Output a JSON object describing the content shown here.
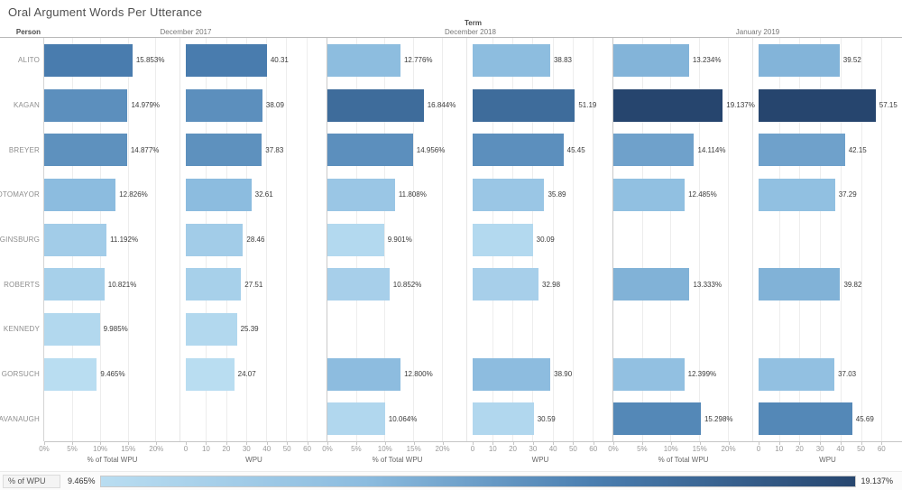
{
  "legend": {
    "title": "% of WPU",
    "min_label": "9.465%",
    "max_label": "19.137%"
  },
  "chart_data": {
    "type": "bar",
    "orientation": "horizontal",
    "title": "Oral Argument Words Per Utterance",
    "row_field": "Person",
    "col_field": "Term",
    "categories": [
      "ALITO",
      "KAGAN",
      "BREYER",
      "SOTOMAYOR",
      "GINSBURG",
      "ROBERTS",
      "KENNEDY",
      "GORSUCH",
      "KAVANAUGH"
    ],
    "terms": [
      "December 2017",
      "December 2018",
      "January 2019"
    ],
    "color_scale": {
      "measure": "% of WPU",
      "domain": [
        9.465,
        19.137
      ],
      "stops": [
        [
          0,
          "#b9ddf1"
        ],
        [
          0.35,
          "#8cbcdf"
        ],
        [
          0.65,
          "#4a7eb0"
        ],
        [
          1,
          "#26456e"
        ]
      ]
    },
    "panels": [
      {
        "term": "December 2017",
        "measure": "% of Total WPU",
        "axis": {
          "ticks": [
            0,
            5,
            10,
            15,
            20
          ],
          "tick_labels": [
            "0%",
            "5%",
            "10%",
            "15%",
            "20%"
          ],
          "max": 24.3,
          "title": "% of Total WPU"
        },
        "values": [
          15.853,
          14.979,
          14.877,
          12.826,
          11.192,
          10.821,
          9.985,
          9.465,
          null
        ],
        "labels": [
          "15.853%",
          "14.979%",
          "14.877%",
          "12.826%",
          "11.192%",
          "10.821%",
          "9.985%",
          "9.465%",
          null
        ],
        "color_values": [
          15.853,
          14.979,
          14.877,
          12.826,
          11.192,
          10.821,
          9.985,
          9.465,
          null
        ]
      },
      {
        "term": "December 2017",
        "measure": "WPU",
        "axis": {
          "ticks": [
            0,
            10,
            20,
            30,
            40,
            50,
            60
          ],
          "tick_labels": [
            "0",
            "10",
            "20",
            "30",
            "40",
            "50",
            "60"
          ],
          "max": 70,
          "title": "WPU"
        },
        "values": [
          40.31,
          38.09,
          37.83,
          32.61,
          28.46,
          27.51,
          25.39,
          24.07,
          null
        ],
        "labels": [
          "40.31",
          "38.09",
          "37.83",
          "32.61",
          "28.46",
          "27.51",
          "25.39",
          "24.07",
          null
        ],
        "color_values": [
          15.853,
          14.979,
          14.877,
          12.826,
          11.192,
          10.821,
          9.985,
          9.465,
          null
        ]
      },
      {
        "term": "December 2018",
        "measure": "% of Total WPU",
        "axis": {
          "ticks": [
            0,
            5,
            10,
            15,
            20
          ],
          "tick_labels": [
            "0%",
            "5%",
            "10%",
            "15%",
            "20%"
          ],
          "max": 24.3,
          "title": "% of Total WPU"
        },
        "values": [
          12.776,
          16.844,
          14.956,
          11.808,
          9.901,
          10.852,
          null,
          12.8,
          10.064
        ],
        "labels": [
          "12.776%",
          "16.844%",
          "14.956%",
          "11.808%",
          "9.901%",
          "10.852%",
          null,
          "12.800%",
          "10.064%"
        ],
        "color_values": [
          12.776,
          16.844,
          14.956,
          11.808,
          9.901,
          10.852,
          null,
          12.8,
          10.064
        ]
      },
      {
        "term": "December 2018",
        "measure": "WPU",
        "axis": {
          "ticks": [
            0,
            10,
            20,
            30,
            40,
            50,
            60
          ],
          "tick_labels": [
            "0",
            "10",
            "20",
            "30",
            "40",
            "50",
            "60"
          ],
          "max": 70,
          "title": "WPU"
        },
        "values": [
          38.83,
          51.19,
          45.45,
          35.89,
          30.09,
          32.98,
          null,
          38.9,
          30.59
        ],
        "labels": [
          "38.83",
          "51.19",
          "45.45",
          "35.89",
          "30.09",
          "32.98",
          null,
          "38.90",
          "30.59"
        ],
        "color_values": [
          12.776,
          16.844,
          14.956,
          11.808,
          9.901,
          10.852,
          null,
          12.8,
          10.064
        ]
      },
      {
        "term": "January 2019",
        "measure": "% of Total WPU",
        "axis": {
          "ticks": [
            0,
            5,
            10,
            15,
            20
          ],
          "tick_labels": [
            "0%",
            "5%",
            "10%",
            "15%",
            "20%"
          ],
          "max": 24.3,
          "title": "% of Total WPU"
        },
        "values": [
          13.234,
          19.137,
          14.114,
          12.485,
          null,
          13.333,
          null,
          12.399,
          15.298
        ],
        "labels": [
          "13.234%",
          "19.137%",
          "14.114%",
          "12.485%",
          null,
          "13.333%",
          null,
          "12.399%",
          "15.298%"
        ],
        "color_values": [
          13.234,
          19.137,
          14.114,
          12.485,
          null,
          13.333,
          null,
          12.399,
          15.298
        ]
      },
      {
        "term": "January 2019",
        "measure": "WPU",
        "axis": {
          "ticks": [
            0,
            10,
            20,
            30,
            40,
            50,
            60
          ],
          "tick_labels": [
            "0",
            "10",
            "20",
            "30",
            "40",
            "50",
            "60"
          ],
          "max": 70,
          "title": "WPU"
        },
        "values": [
          39.52,
          57.15,
          42.15,
          37.29,
          null,
          39.82,
          null,
          37.03,
          45.69
        ],
        "labels": [
          "39.52",
          "57.15",
          "42.15",
          "37.29",
          null,
          "39.82",
          null,
          "37.03",
          "45.69"
        ],
        "color_values": [
          13.234,
          19.137,
          14.114,
          12.485,
          null,
          13.333,
          null,
          12.399,
          15.298
        ]
      }
    ]
  }
}
